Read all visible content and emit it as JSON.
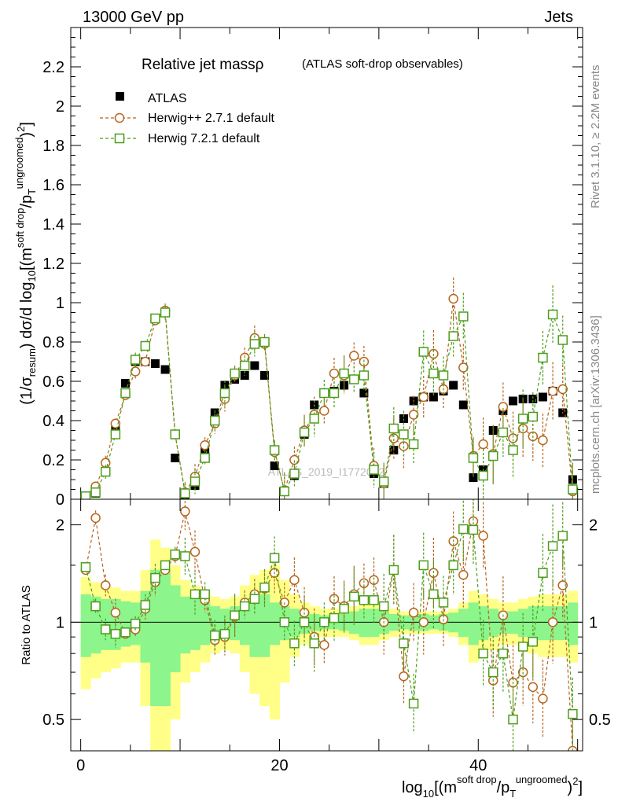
{
  "header": {
    "left": "13000 GeV pp",
    "right": "Jets"
  },
  "side_labels": {
    "rivet": "Rivet 3.1.10, ≥ 2.2M events",
    "mcplots": "mcplots.cern.ch [arXiv:1306.3436]"
  },
  "watermark": "ATLAS_2019_I1772062",
  "chart_data": [
    {
      "type": "scatter",
      "panel": "main",
      "title": "Relative jet massρ",
      "subtitle": "(ATLAS soft-drop observables)",
      "ylabel": "(1/σresum) dσ/d log10[(m^soft drop/pT^ungroomed)^2]",
      "xlim": [
        -1,
        50.5
      ],
      "ylim": [
        0,
        2.4
      ],
      "yticks": [
        0,
        0.2,
        0.4,
        0.6,
        0.8,
        1,
        1.2,
        1.4,
        1.6,
        1.8,
        2,
        2.2
      ],
      "ytick_labels": [
        "0",
        "0.2",
        "0.4",
        "0.6",
        "0.8",
        "1",
        "1.2",
        "1.4",
        "1.6",
        "1.8",
        "2",
        "2.2"
      ],
      "legend": [
        "ATLAS",
        "Herwig++ 2.7.1 default",
        "Herwig 7.2.1 default"
      ],
      "x": [
        0.5,
        1.5,
        2.5,
        3.5,
        4.5,
        5.5,
        6.5,
        7.5,
        8.5,
        9.5,
        10.5,
        11.5,
        12.5,
        13.5,
        14.5,
        15.5,
        16.5,
        17.5,
        18.5,
        19.5,
        20.5,
        21.5,
        22.5,
        23.5,
        24.5,
        25.5,
        26.5,
        27.5,
        28.5,
        29.5,
        30.5,
        31.5,
        32.5,
        33.5,
        34.5,
        35.5,
        36.5,
        37.5,
        38.5,
        39.5,
        40.5,
        41.5,
        42.5,
        43.5,
        44.5,
        45.5,
        46.5,
        47.5,
        48.5,
        49.5
      ],
      "series": [
        {
          "name": "ATLAS",
          "marker": "filled-square",
          "color": "#000000",
          "values": [
            0.01,
            0.03,
            0.14,
            0.36,
            0.59,
            0.7,
            0.7,
            0.69,
            0.66,
            0.21,
            0.02,
            0.07,
            0.24,
            0.44,
            0.58,
            0.61,
            0.63,
            0.68,
            0.63,
            0.17,
            0.04,
            0.12,
            0.33,
            0.48,
            0.54,
            0.55,
            0.58,
            0.61,
            0.54,
            0.13,
            0.08,
            0.25,
            0.41,
            0.5,
            0.52,
            0.52,
            0.55,
            0.58,
            0.48,
            0.11,
            0.15,
            0.35,
            0.45,
            0.5,
            0.51,
            0.51,
            0.52,
            0.55,
            0.44,
            0.1
          ]
        },
        {
          "name": "Herwig++ 2.7.1 default",
          "marker": "open-circle",
          "color": "#b5651d",
          "values": [
            0.015,
            0.065,
            0.185,
            0.385,
            0.53,
            0.65,
            0.7,
            0.91,
            0.96,
            0.33,
            0.035,
            0.115,
            0.275,
            0.385,
            0.51,
            0.63,
            0.72,
            0.82,
            0.79,
            0.24,
            0.045,
            0.2,
            0.35,
            0.43,
            0.45,
            0.64,
            0.63,
            0.73,
            0.7,
            0.17,
            0.08,
            0.31,
            0.27,
            0.43,
            0.52,
            0.74,
            0.56,
            1.02,
            0.67,
            0.22,
            0.28,
            0.23,
            0.47,
            0.31,
            0.36,
            0.32,
            0.3,
            0.55,
            0.56,
            0.04
          ]
        },
        {
          "name": "Herwig 7.2.1 default",
          "marker": "open-square",
          "color": "#4d9e1c",
          "values": [
            0.015,
            0.035,
            0.14,
            0.33,
            0.54,
            0.71,
            0.78,
            0.92,
            0.95,
            0.33,
            0.03,
            0.09,
            0.21,
            0.4,
            0.54,
            0.64,
            0.68,
            0.79,
            0.8,
            0.25,
            0.04,
            0.13,
            0.34,
            0.41,
            0.54,
            0.54,
            0.64,
            0.61,
            0.63,
            0.15,
            0.09,
            0.36,
            0.33,
            0.28,
            0.75,
            0.64,
            0.63,
            0.83,
            0.93,
            0.21,
            0.12,
            0.22,
            0.34,
            0.25,
            0.41,
            0.42,
            0.72,
            0.94,
            0.81,
            0.05
          ]
        }
      ]
    },
    {
      "type": "line",
      "panel": "ratio",
      "ylabel": "Ratio to ATLAS",
      "xlabel": "log10[(m^soft drop/pT^ungroomed)^2]",
      "xlim": [
        -1,
        50.5
      ],
      "ylim": [
        0.4,
        2.4
      ],
      "yscale": "log",
      "yticks": [
        0.5,
        1,
        2
      ],
      "ytick_labels": [
        "0.5",
        "1",
        "2"
      ],
      "xticks": [
        0,
        20,
        40
      ],
      "xtick_labels": [
        "0",
        "20",
        "40"
      ],
      "band_1sigma_halfwidth": [
        0.22,
        0.2,
        0.18,
        0.18,
        0.16,
        0.15,
        0.25,
        0.45,
        0.45,
        0.3,
        0.2,
        0.18,
        0.15,
        0.12,
        0.1,
        0.12,
        0.15,
        0.22,
        0.22,
        0.15,
        0.12,
        0.1,
        0.08,
        0.06,
        0.05,
        0.05,
        0.06,
        0.08,
        0.1,
        0.1,
        0.08,
        0.06,
        0.05,
        0.06,
        0.06,
        0.05,
        0.06,
        0.07,
        0.1,
        0.15,
        0.12,
        0.1,
        0.08,
        0.08,
        0.1,
        0.12,
        0.12,
        0.12,
        0.12,
        0.15
      ],
      "band_2sigma_halfwidth": [
        0.38,
        0.33,
        0.3,
        0.28,
        0.25,
        0.25,
        0.45,
        0.8,
        0.7,
        0.5,
        0.35,
        0.3,
        0.25,
        0.2,
        0.18,
        0.2,
        0.3,
        0.4,
        0.45,
        0.5,
        0.35,
        0.22,
        0.15,
        0.12,
        0.1,
        0.1,
        0.1,
        0.12,
        0.15,
        0.15,
        0.12,
        0.1,
        0.08,
        0.08,
        0.08,
        0.08,
        0.08,
        0.1,
        0.15,
        0.25,
        0.22,
        0.18,
        0.15,
        0.15,
        0.18,
        0.2,
        0.22,
        0.22,
        0.22,
        0.25
      ],
      "series": [
        {
          "name": "Herwig++ 2.7.1 default",
          "color": "#b5651d",
          "values": [
            1.45,
            2.1,
            1.3,
            1.07,
            0.92,
            0.95,
            1.1,
            1.33,
            1.45,
            1.6,
            2.2,
            1.65,
            1.17,
            0.88,
            0.9,
            1.04,
            1.15,
            1.22,
            1.27,
            1.42,
            1.15,
            1.35,
            1.07,
            0.9,
            0.85,
            1.18,
            1.12,
            1.22,
            1.32,
            1.35,
            1.0,
            1.45,
            0.68,
            1.07,
            1.0,
            1.42,
            1.02,
            1.78,
            1.4,
            2.05,
            1.85,
            0.66,
            1.05,
            0.65,
            0.7,
            0.63,
            0.58,
            1.0,
            1.3,
            0.4
          ]
        },
        {
          "name": "Herwig 7.2.1 default",
          "color": "#4d9e1c",
          "values": [
            1.48,
            1.12,
            0.95,
            0.92,
            0.93,
            0.99,
            1.13,
            1.37,
            1.5,
            1.62,
            1.6,
            1.22,
            1.22,
            0.91,
            0.92,
            1.05,
            1.12,
            1.18,
            1.28,
            1.58,
            1.0,
            0.86,
            1.0,
            0.86,
            1.0,
            1.03,
            1.1,
            1.2,
            1.17,
            1.17,
            1.12,
            1.45,
            0.86,
            0.56,
            1.5,
            1.22,
            1.15,
            1.5,
            1.94,
            1.93,
            0.8,
            0.7,
            0.8,
            0.5,
            0.84,
            0.87,
            1.42,
            1.72,
            1.85,
            0.52
          ]
        }
      ]
    }
  ]
}
